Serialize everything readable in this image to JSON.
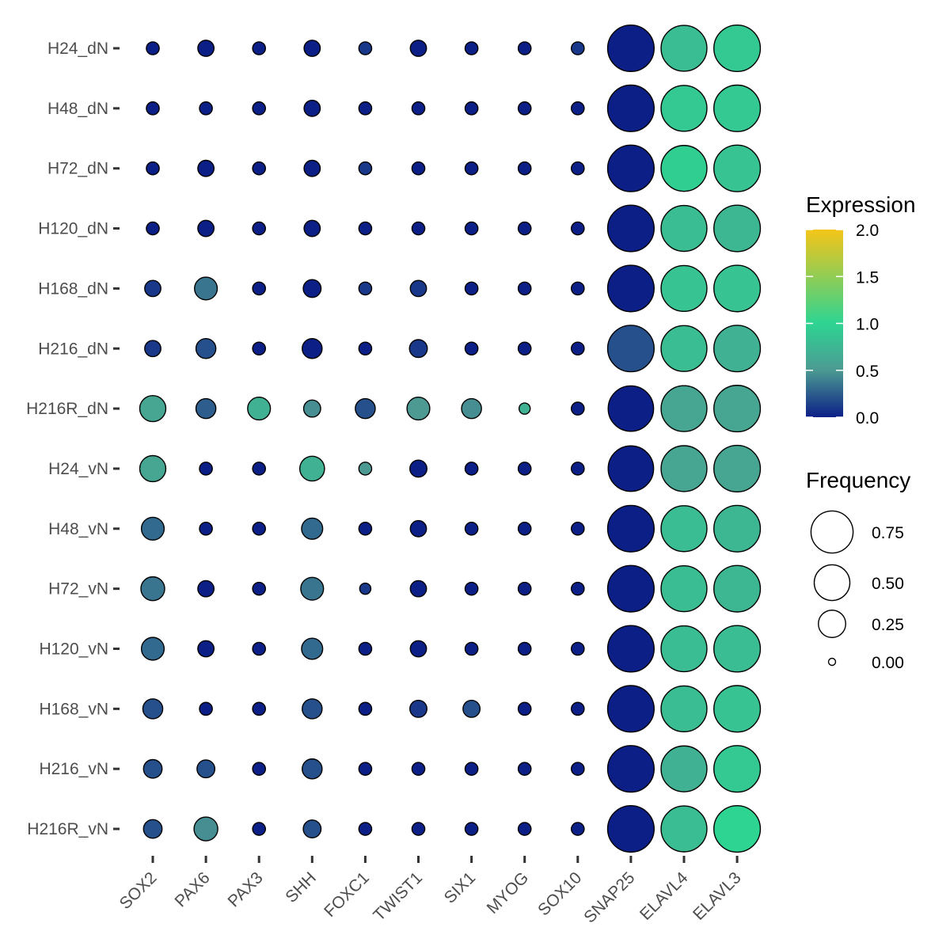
{
  "chart_data": {
    "type": "dotplot",
    "genes": [
      "SOX2",
      "PAX6",
      "PAX3",
      "SHH",
      "FOXC1",
      "TWIST1",
      "SIX1",
      "MYOG",
      "SOX10",
      "SNAP25",
      "ELAVL4",
      "ELAVL3"
    ],
    "samples": [
      "H24_dN",
      "H48_dN",
      "H72_dN",
      "H120_dN",
      "H168_dN",
      "H216_dN",
      "H216R_dN",
      "H24_vN",
      "H48_vN",
      "H72_vN",
      "H120_vN",
      "H168_vN",
      "H216_vN",
      "H216R_vN"
    ],
    "frequency": [
      [
        0.02,
        0.05,
        0.02,
        0.05,
        0.02,
        0.05,
        0.02,
        0.02,
        0.02,
        0.95,
        0.92,
        0.95
      ],
      [
        0.02,
        0.02,
        0.02,
        0.05,
        0.02,
        0.02,
        0.02,
        0.02,
        0.02,
        0.95,
        0.92,
        0.95
      ],
      [
        0.02,
        0.05,
        0.02,
        0.05,
        0.02,
        0.02,
        0.02,
        0.02,
        0.02,
        0.95,
        0.92,
        0.95
      ],
      [
        0.02,
        0.05,
        0.02,
        0.05,
        0.02,
        0.02,
        0.02,
        0.02,
        0.02,
        0.95,
        0.92,
        0.95
      ],
      [
        0.05,
        0.15,
        0.02,
        0.07,
        0.02,
        0.05,
        0.02,
        0.02,
        0.02,
        0.95,
        0.92,
        0.95
      ],
      [
        0.05,
        0.1,
        0.02,
        0.1,
        0.02,
        0.07,
        0.02,
        0.02,
        0.02,
        0.95,
        0.92,
        0.95
      ],
      [
        0.22,
        0.1,
        0.15,
        0.06,
        0.1,
        0.15,
        0.1,
        0.01,
        0.02,
        0.9,
        0.92,
        0.95
      ],
      [
        0.22,
        0.02,
        0.02,
        0.19,
        0.02,
        0.06,
        0.02,
        0.02,
        0.02,
        0.9,
        0.92,
        0.95
      ],
      [
        0.15,
        0.02,
        0.02,
        0.12,
        0.02,
        0.05,
        0.02,
        0.02,
        0.02,
        0.95,
        0.92,
        0.95
      ],
      [
        0.17,
        0.05,
        0.02,
        0.15,
        0.01,
        0.05,
        0.02,
        0.02,
        0.02,
        0.95,
        0.92,
        0.95
      ],
      [
        0.15,
        0.05,
        0.02,
        0.12,
        0.02,
        0.05,
        0.02,
        0.02,
        0.02,
        0.95,
        0.92,
        0.95
      ],
      [
        0.1,
        0.02,
        0.02,
        0.1,
        0.02,
        0.06,
        0.06,
        0.02,
        0.02,
        0.95,
        0.92,
        0.95
      ],
      [
        0.08,
        0.07,
        0.02,
        0.1,
        0.02,
        0.02,
        0.02,
        0.02,
        0.02,
        0.95,
        0.92,
        0.95
      ],
      [
        0.08,
        0.17,
        0.02,
        0.07,
        0.02,
        0.02,
        0.02,
        0.02,
        0.02,
        0.95,
        0.92,
        0.95
      ]
    ],
    "expression": [
      [
        0.0,
        0.0,
        0.0,
        0.0,
        0.1,
        0.0,
        0.0,
        0.0,
        0.1,
        0.0,
        0.8,
        0.9
      ],
      [
        0.0,
        0.0,
        0.0,
        0.0,
        0.0,
        0.0,
        0.0,
        0.0,
        0.0,
        0.0,
        0.9,
        0.9
      ],
      [
        0.0,
        0.0,
        0.0,
        0.0,
        0.1,
        0.0,
        0.0,
        0.0,
        0.0,
        0.0,
        0.95,
        0.85
      ],
      [
        0.0,
        0.0,
        0.0,
        0.0,
        0.0,
        0.0,
        0.0,
        0.0,
        0.0,
        0.0,
        0.8,
        0.75
      ],
      [
        0.1,
        0.35,
        0.0,
        0.0,
        0.1,
        0.1,
        0.0,
        0.0,
        0.0,
        0.0,
        0.85,
        0.85
      ],
      [
        0.1,
        0.2,
        0.0,
        0.0,
        0.0,
        0.1,
        0.0,
        0.0,
        0.0,
        0.2,
        0.8,
        0.7
      ],
      [
        0.6,
        0.25,
        0.7,
        0.45,
        0.2,
        0.5,
        0.45,
        0.7,
        0.0,
        0.0,
        0.6,
        0.6
      ],
      [
        0.6,
        0.0,
        0.0,
        0.7,
        0.5,
        0.0,
        0.0,
        0.0,
        0.0,
        0.0,
        0.6,
        0.6
      ],
      [
        0.3,
        0.0,
        0.0,
        0.3,
        0.0,
        0.0,
        0.0,
        0.0,
        0.0,
        0.0,
        0.8,
        0.75
      ],
      [
        0.35,
        0.0,
        0.0,
        0.35,
        0.1,
        0.0,
        0.0,
        0.0,
        0.0,
        0.0,
        0.8,
        0.75
      ],
      [
        0.3,
        0.0,
        0.0,
        0.3,
        0.0,
        0.0,
        0.0,
        0.0,
        0.0,
        0.0,
        0.8,
        0.8
      ],
      [
        0.2,
        0.0,
        0.0,
        0.2,
        0.0,
        0.1,
        0.2,
        0.0,
        0.0,
        0.0,
        0.8,
        0.85
      ],
      [
        0.2,
        0.2,
        0.0,
        0.2,
        0.0,
        0.0,
        0.0,
        0.0,
        0.0,
        0.0,
        0.7,
        0.9
      ],
      [
        0.2,
        0.45,
        0.0,
        0.2,
        0.0,
        0.0,
        0.0,
        0.0,
        0.0,
        0.0,
        0.8,
        1.0
      ]
    ],
    "color_scale": {
      "title": "Expression",
      "range": [
        0,
        2
      ],
      "ticks": [
        "0.0",
        "0.5",
        "1.0",
        "1.5",
        "2.0"
      ],
      "colors": [
        "#0c1f87",
        "#4c9a92",
        "#2ed492",
        "#f5c518"
      ]
    },
    "size_scale": {
      "title": "Frequency",
      "ticks": [
        "0.75",
        "0.50",
        "0.25",
        "0.00"
      ],
      "values": [
        0.75,
        0.5,
        0.25,
        0.0
      ]
    },
    "legend_position": "right"
  }
}
